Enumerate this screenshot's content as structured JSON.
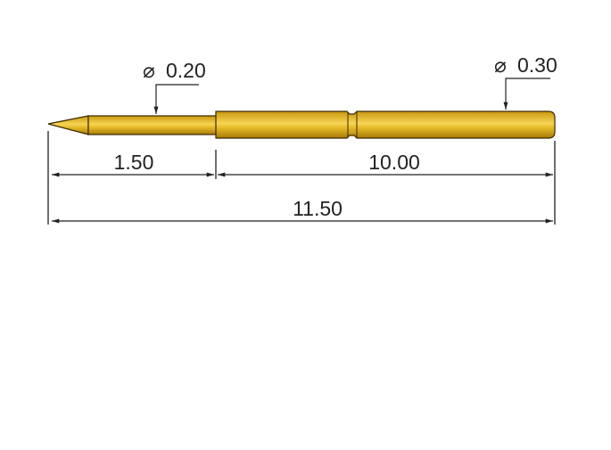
{
  "diameters": {
    "tip": "0.20",
    "barrel": "0.30",
    "symbol": "⌀"
  },
  "dimensions": {
    "plunger_length": "1.50",
    "barrel_length": "10.00",
    "total_length": "11.50"
  },
  "colors": {
    "gold_dark": "#b8860b",
    "gold_light": "#f3cf4a",
    "outline": "#3a2a00",
    "line": "#222222"
  }
}
